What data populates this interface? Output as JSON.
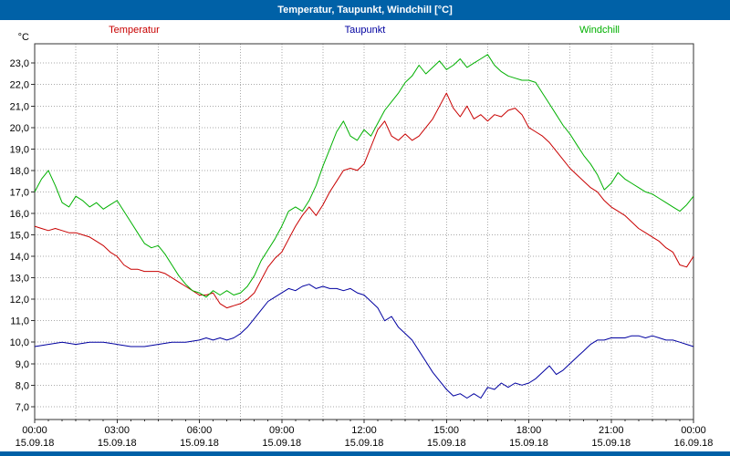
{
  "window": {
    "title": "Temperatur, Taupunkt, Windchill [°C]",
    "titlebar_color": "#0061a7"
  },
  "chart_data": {
    "type": "line",
    "title": "Temperatur, Taupunkt, Windchill [°C]",
    "unit_label": "°C",
    "grid": true,
    "legend_position": "top",
    "x_axis": {
      "start_hour": 0,
      "end_hour": 24,
      "major_tick_hours": 3,
      "grid_interval_hours": 1.5,
      "minor_tick_hours": 0.5,
      "tick_labels": [
        {
          "time": "00:00",
          "date": "15.09.18"
        },
        {
          "time": "03:00",
          "date": "15.09.18"
        },
        {
          "time": "06:00",
          "date": "15.09.18"
        },
        {
          "time": "09:00",
          "date": "15.09.18"
        },
        {
          "time": "12:00",
          "date": "15.09.18"
        },
        {
          "time": "15:00",
          "date": "15.09.18"
        },
        {
          "time": "18:00",
          "date": "15.09.18"
        },
        {
          "time": "21:00",
          "date": "15.09.18"
        },
        {
          "time": "00:00",
          "date": "16.09.18"
        }
      ]
    },
    "y_axis": {
      "min": 6.4,
      "max": 23.9,
      "tick_min": 7,
      "tick_max": 23,
      "tick_step": 1,
      "decimal_separator": ","
    },
    "colors": {
      "grid": "#aaaaaa",
      "axis": "#333333",
      "plot_background": "#ffffff"
    },
    "series": [
      {
        "name": "Temperatur",
        "color": "#c80000",
        "points": [
          [
            0,
            15.4
          ],
          [
            0.25,
            15.3
          ],
          [
            0.5,
            15.2
          ],
          [
            0.75,
            15.3
          ],
          [
            1,
            15.2
          ],
          [
            1.25,
            15.1
          ],
          [
            1.5,
            15.1
          ],
          [
            1.75,
            15.0
          ],
          [
            2,
            14.9
          ],
          [
            2.25,
            14.7
          ],
          [
            2.5,
            14.5
          ],
          [
            2.75,
            14.2
          ],
          [
            3,
            14.0
          ],
          [
            3.25,
            13.6
          ],
          [
            3.5,
            13.4
          ],
          [
            3.75,
            13.4
          ],
          [
            4,
            13.3
          ],
          [
            4.25,
            13.3
          ],
          [
            4.5,
            13.3
          ],
          [
            4.75,
            13.2
          ],
          [
            5,
            13.0
          ],
          [
            5.25,
            12.8
          ],
          [
            5.5,
            12.6
          ],
          [
            5.75,
            12.4
          ],
          [
            6,
            12.2
          ],
          [
            6.25,
            12.2
          ],
          [
            6.5,
            12.3
          ],
          [
            6.75,
            11.8
          ],
          [
            7,
            11.6
          ],
          [
            7.25,
            11.7
          ],
          [
            7.5,
            11.8
          ],
          [
            7.75,
            12.0
          ],
          [
            8,
            12.3
          ],
          [
            8.25,
            12.9
          ],
          [
            8.5,
            13.5
          ],
          [
            8.75,
            13.9
          ],
          [
            9,
            14.2
          ],
          [
            9.25,
            14.8
          ],
          [
            9.5,
            15.4
          ],
          [
            9.75,
            15.9
          ],
          [
            10,
            16.3
          ],
          [
            10.25,
            15.9
          ],
          [
            10.5,
            16.4
          ],
          [
            10.75,
            17.0
          ],
          [
            11,
            17.5
          ],
          [
            11.25,
            18.0
          ],
          [
            11.5,
            18.1
          ],
          [
            11.75,
            18.0
          ],
          [
            12,
            18.3
          ],
          [
            12.25,
            19.1
          ],
          [
            12.5,
            19.9
          ],
          [
            12.75,
            20.3
          ],
          [
            13,
            19.6
          ],
          [
            13.25,
            19.4
          ],
          [
            13.5,
            19.7
          ],
          [
            13.75,
            19.4
          ],
          [
            14,
            19.6
          ],
          [
            14.25,
            20.0
          ],
          [
            14.5,
            20.4
          ],
          [
            14.75,
            21.0
          ],
          [
            15,
            21.6
          ],
          [
            15.25,
            20.9
          ],
          [
            15.5,
            20.5
          ],
          [
            15.75,
            21.0
          ],
          [
            16,
            20.4
          ],
          [
            16.25,
            20.6
          ],
          [
            16.5,
            20.3
          ],
          [
            16.75,
            20.6
          ],
          [
            17,
            20.5
          ],
          [
            17.25,
            20.8
          ],
          [
            17.5,
            20.9
          ],
          [
            17.75,
            20.6
          ],
          [
            18,
            20.0
          ],
          [
            18.25,
            19.8
          ],
          [
            18.5,
            19.6
          ],
          [
            18.75,
            19.3
          ],
          [
            19,
            18.9
          ],
          [
            19.25,
            18.5
          ],
          [
            19.5,
            18.1
          ],
          [
            19.75,
            17.8
          ],
          [
            20,
            17.5
          ],
          [
            20.25,
            17.2
          ],
          [
            20.5,
            17.0
          ],
          [
            20.75,
            16.6
          ],
          [
            21,
            16.3
          ],
          [
            21.25,
            16.1
          ],
          [
            21.5,
            15.9
          ],
          [
            21.75,
            15.6
          ],
          [
            22,
            15.3
          ],
          [
            22.25,
            15.1
          ],
          [
            22.5,
            14.9
          ],
          [
            22.75,
            14.7
          ],
          [
            23,
            14.4
          ],
          [
            23.25,
            14.2
          ],
          [
            23.5,
            13.6
          ],
          [
            23.75,
            13.5
          ],
          [
            24,
            14.0
          ]
        ]
      },
      {
        "name": "Taupunkt",
        "color": "#0000a0",
        "points": [
          [
            0,
            9.8
          ],
          [
            0.5,
            9.9
          ],
          [
            1,
            10.0
          ],
          [
            1.5,
            9.9
          ],
          [
            2,
            10.0
          ],
          [
            2.5,
            10.0
          ],
          [
            3,
            9.9
          ],
          [
            3.5,
            9.8
          ],
          [
            4,
            9.8
          ],
          [
            4.5,
            9.9
          ],
          [
            5,
            10.0
          ],
          [
            5.5,
            10.0
          ],
          [
            6,
            10.1
          ],
          [
            6.25,
            10.2
          ],
          [
            6.5,
            10.1
          ],
          [
            6.75,
            10.2
          ],
          [
            7,
            10.1
          ],
          [
            7.25,
            10.2
          ],
          [
            7.5,
            10.4
          ],
          [
            7.75,
            10.7
          ],
          [
            8,
            11.1
          ],
          [
            8.25,
            11.5
          ],
          [
            8.5,
            11.9
          ],
          [
            8.75,
            12.1
          ],
          [
            9,
            12.3
          ],
          [
            9.25,
            12.5
          ],
          [
            9.5,
            12.4
          ],
          [
            9.75,
            12.6
          ],
          [
            10,
            12.7
          ],
          [
            10.25,
            12.5
          ],
          [
            10.5,
            12.6
          ],
          [
            10.75,
            12.5
          ],
          [
            11,
            12.5
          ],
          [
            11.25,
            12.4
          ],
          [
            11.5,
            12.5
          ],
          [
            11.75,
            12.3
          ],
          [
            12,
            12.2
          ],
          [
            12.25,
            11.9
          ],
          [
            12.5,
            11.6
          ],
          [
            12.75,
            11.0
          ],
          [
            13,
            11.2
          ],
          [
            13.25,
            10.7
          ],
          [
            13.5,
            10.4
          ],
          [
            13.75,
            10.1
          ],
          [
            14,
            9.6
          ],
          [
            14.25,
            9.1
          ],
          [
            14.5,
            8.6
          ],
          [
            14.75,
            8.2
          ],
          [
            15,
            7.8
          ],
          [
            15.25,
            7.5
          ],
          [
            15.5,
            7.6
          ],
          [
            15.75,
            7.4
          ],
          [
            16,
            7.6
          ],
          [
            16.25,
            7.4
          ],
          [
            16.5,
            7.9
          ],
          [
            16.75,
            7.8
          ],
          [
            17,
            8.1
          ],
          [
            17.25,
            7.9
          ],
          [
            17.5,
            8.1
          ],
          [
            17.75,
            8.0
          ],
          [
            18,
            8.1
          ],
          [
            18.25,
            8.3
          ],
          [
            18.5,
            8.6
          ],
          [
            18.75,
            8.9
          ],
          [
            19,
            8.5
          ],
          [
            19.25,
            8.7
          ],
          [
            19.5,
            9.0
          ],
          [
            19.75,
            9.3
          ],
          [
            20,
            9.6
          ],
          [
            20.25,
            9.9
          ],
          [
            20.5,
            10.1
          ],
          [
            20.75,
            10.1
          ],
          [
            21,
            10.2
          ],
          [
            21.25,
            10.2
          ],
          [
            21.5,
            10.2
          ],
          [
            21.75,
            10.3
          ],
          [
            22,
            10.3
          ],
          [
            22.25,
            10.2
          ],
          [
            22.5,
            10.3
          ],
          [
            22.75,
            10.2
          ],
          [
            23,
            10.1
          ],
          [
            23.25,
            10.1
          ],
          [
            23.5,
            10.0
          ],
          [
            23.75,
            9.9
          ],
          [
            24,
            9.8
          ]
        ]
      },
      {
        "name": "Windchill",
        "color": "#00b000",
        "points": [
          [
            0,
            17.0
          ],
          [
            0.25,
            17.6
          ],
          [
            0.5,
            18.0
          ],
          [
            0.75,
            17.3
          ],
          [
            1,
            16.5
          ],
          [
            1.25,
            16.3
          ],
          [
            1.5,
            16.8
          ],
          [
            1.75,
            16.6
          ],
          [
            2,
            16.3
          ],
          [
            2.25,
            16.5
          ],
          [
            2.5,
            16.2
          ],
          [
            2.75,
            16.4
          ],
          [
            3,
            16.6
          ],
          [
            3.25,
            16.1
          ],
          [
            3.5,
            15.6
          ],
          [
            3.75,
            15.1
          ],
          [
            4,
            14.6
          ],
          [
            4.25,
            14.4
          ],
          [
            4.5,
            14.5
          ],
          [
            4.75,
            14.1
          ],
          [
            5,
            13.6
          ],
          [
            5.25,
            13.1
          ],
          [
            5.5,
            12.7
          ],
          [
            5.75,
            12.4
          ],
          [
            6,
            12.3
          ],
          [
            6.25,
            12.1
          ],
          [
            6.5,
            12.4
          ],
          [
            6.75,
            12.2
          ],
          [
            7,
            12.4
          ],
          [
            7.25,
            12.2
          ],
          [
            7.5,
            12.3
          ],
          [
            7.75,
            12.6
          ],
          [
            8,
            13.1
          ],
          [
            8.25,
            13.8
          ],
          [
            8.5,
            14.3
          ],
          [
            8.75,
            14.8
          ],
          [
            9,
            15.4
          ],
          [
            9.25,
            16.1
          ],
          [
            9.5,
            16.3
          ],
          [
            9.75,
            16.1
          ],
          [
            10,
            16.6
          ],
          [
            10.25,
            17.3
          ],
          [
            10.5,
            18.2
          ],
          [
            10.75,
            19.0
          ],
          [
            11,
            19.8
          ],
          [
            11.25,
            20.3
          ],
          [
            11.5,
            19.6
          ],
          [
            11.75,
            19.4
          ],
          [
            12,
            19.9
          ],
          [
            12.25,
            19.6
          ],
          [
            12.5,
            20.2
          ],
          [
            12.75,
            20.8
          ],
          [
            13,
            21.2
          ],
          [
            13.25,
            21.6
          ],
          [
            13.5,
            22.1
          ],
          [
            13.75,
            22.4
          ],
          [
            14,
            22.9
          ],
          [
            14.25,
            22.5
          ],
          [
            14.5,
            22.8
          ],
          [
            14.75,
            23.1
          ],
          [
            15,
            22.7
          ],
          [
            15.25,
            22.9
          ],
          [
            15.5,
            23.2
          ],
          [
            15.75,
            22.8
          ],
          [
            16,
            23.0
          ],
          [
            16.25,
            23.2
          ],
          [
            16.5,
            23.4
          ],
          [
            16.75,
            22.9
          ],
          [
            17,
            22.6
          ],
          [
            17.25,
            22.4
          ],
          [
            17.5,
            22.3
          ],
          [
            17.75,
            22.2
          ],
          [
            18,
            22.2
          ],
          [
            18.25,
            22.1
          ],
          [
            18.5,
            21.6
          ],
          [
            18.75,
            21.1
          ],
          [
            19,
            20.6
          ],
          [
            19.25,
            20.1
          ],
          [
            19.5,
            19.7
          ],
          [
            19.75,
            19.2
          ],
          [
            20,
            18.7
          ],
          [
            20.25,
            18.3
          ],
          [
            20.5,
            17.8
          ],
          [
            20.75,
            17.1
          ],
          [
            21,
            17.4
          ],
          [
            21.25,
            17.9
          ],
          [
            21.5,
            17.6
          ],
          [
            21.75,
            17.4
          ],
          [
            22,
            17.2
          ],
          [
            22.25,
            17.0
          ],
          [
            22.5,
            16.9
          ],
          [
            22.75,
            16.7
          ],
          [
            23,
            16.5
          ],
          [
            23.25,
            16.3
          ],
          [
            23.5,
            16.1
          ],
          [
            23.75,
            16.4
          ],
          [
            24,
            16.8
          ]
        ]
      }
    ]
  }
}
